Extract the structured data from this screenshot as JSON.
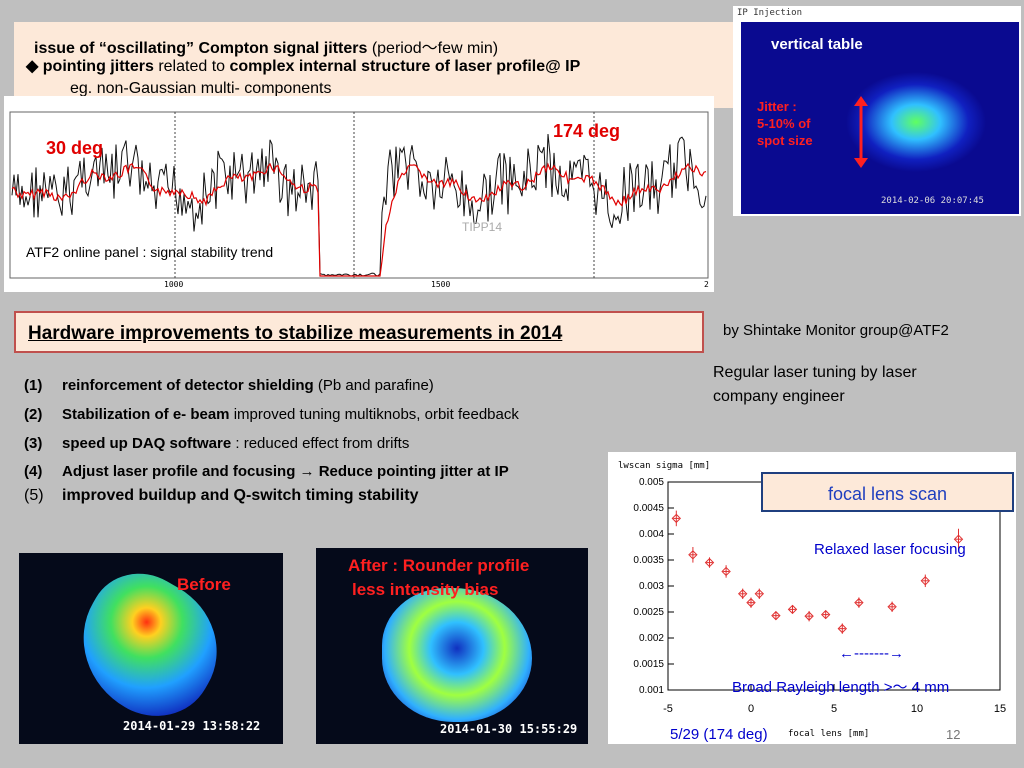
{
  "issue": {
    "line1_bold": "issue of “oscillating” Compton signal jitters",
    "line1_rest": " (period～few min)",
    "bullet": "◆",
    "line2_bold1": "pointing jitters",
    "line2_mid": " related to ",
    "line2_bold2": "complex internal structure of laser profile@ IP",
    "line3": "eg.  non-Gaussian multi- components"
  },
  "trend": {
    "label_30": "30 deg",
    "label_174": "174 deg",
    "caption": "ATF2 online panel :  signal stability trend",
    "watermark": "TIPP14",
    "tick_1000": "1000",
    "tick_1500": "1500",
    "tick_end": "2"
  },
  "ip_shot": {
    "header": "IP Injection",
    "title": "vertical table",
    "jitter_line1": "Jitter :",
    "jitter_line2": "5-10% of",
    "jitter_line3": "spot size",
    "timestamp": "2014-02-06 20:07:45"
  },
  "hardware": {
    "title": "Hardware improvements to stabilize measurements in 2014",
    "credit": "by Shintake Monitor group@ATF2",
    "tuning_line1": "Regular laser tuning by laser",
    "tuning_line2": "company engineer",
    "items": [
      {
        "num": "(1)",
        "bold": "reinforcement of detector shielding",
        "rest": " (Pb and parafine)"
      },
      {
        "num": "(2)",
        "bold": "Stabilization of e- beam",
        "rest": "   improved tuning multiknobs, orbit feedback"
      },
      {
        "num": "(3)",
        "bold": "speed up  DAQ  software",
        "rest": " :  reduced effect from drifts"
      },
      {
        "num": "(4)",
        "bold": "Adjust  laser profile and focusing → Reduce pointing jitter at IP",
        "rest": ""
      },
      {
        "num": "(5)",
        "bold": "improved buildup and Q-switch timing stability",
        "rest": ""
      }
    ]
  },
  "profiles": {
    "before_label": "Before",
    "before_time": "2014-01-29 13:58:22",
    "after_label1": "After :   Rounder profile",
    "after_label2": "less intensity bias",
    "after_time": "2014-01-30 15:55:29"
  },
  "lens": {
    "title": "focal lens scan",
    "relaxed": "Relaxed laser focusing",
    "arrow": "←-------→",
    "rayleigh": "Broad Rayleigh length >～ 4 mm",
    "footer": "5/29  (174 deg)",
    "page_num": "12"
  },
  "chart_data": {
    "type": "scatter",
    "title": "",
    "ylabel": "lwscan sigma [mm]",
    "xlabel": "focal lens [mm]",
    "xlim": [
      -5,
      15
    ],
    "ylim": [
      0.001,
      0.005
    ],
    "x_ticks": [
      "-5",
      "0",
      "5",
      "10",
      "15"
    ],
    "y_ticks": [
      "0.001",
      "0.0015",
      "0.002",
      "0.0025",
      "0.003",
      "0.0035",
      "0.004",
      "0.0045",
      "0.005"
    ],
    "grid": false,
    "x": [
      -4.5,
      -3.5,
      -2.5,
      -1.5,
      -0.5,
      0.0,
      0.5,
      1.5,
      2.5,
      3.5,
      4.5,
      5.5,
      6.5,
      8.5,
      10.5,
      12.5
    ],
    "y": [
      0.0043,
      0.0036,
      0.00345,
      0.00328,
      0.00285,
      0.00268,
      0.00285,
      0.00243,
      0.00255,
      0.00242,
      0.00245,
      0.00218,
      0.00268,
      0.0026,
      0.0031,
      0.0039
    ],
    "err": [
      0.00015,
      0.00015,
      0.0001,
      0.00012,
      0.0001,
      0.0001,
      0.0001,
      8e-05,
      8e-05,
      0.0001,
      8e-05,
      0.0001,
      0.0001,
      0.0001,
      0.00012,
      0.0002
    ]
  }
}
